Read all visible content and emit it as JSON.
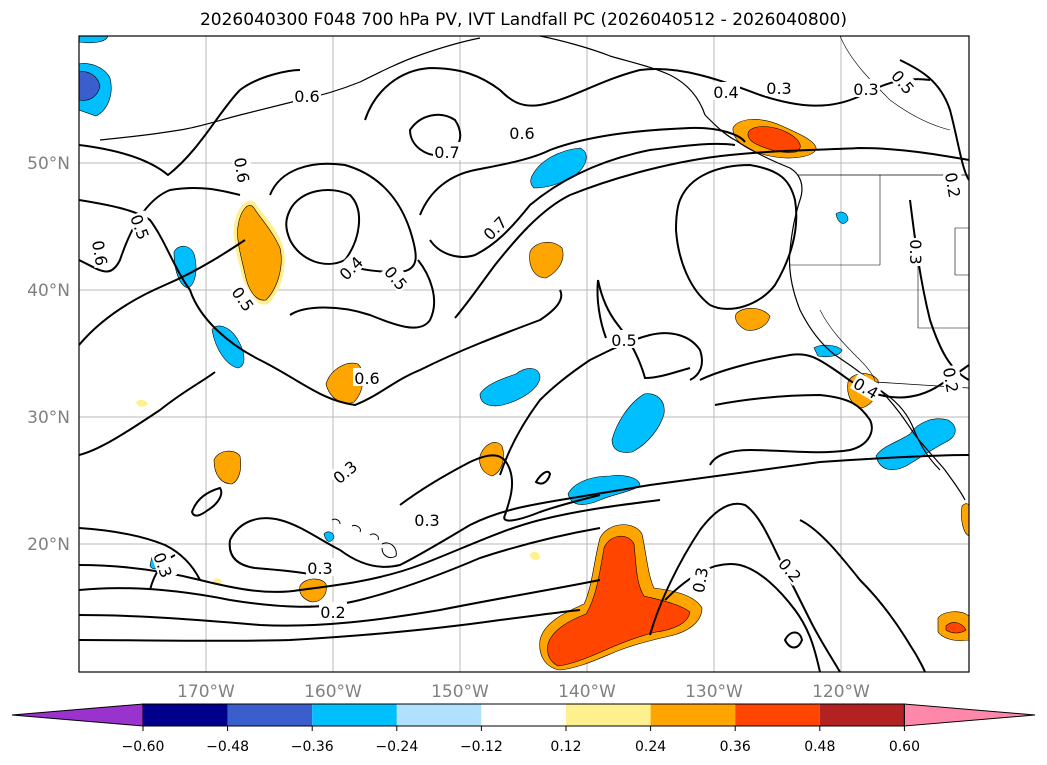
{
  "title": "2026040300 F048 700 hPa PV, IVT Landfall PC (2026040512 - 2026040800)",
  "map": {
    "lon_labels": [
      "170°W",
      "160°W",
      "150°W",
      "140°W",
      "130°W",
      "120°W"
    ],
    "lat_labels": [
      "50°N",
      "40°N",
      "30°N",
      "20°N"
    ],
    "contour_labels": [
      "0.6",
      "0.7",
      "0.6",
      "0.4",
      "0.3",
      "0.3",
      "0.5",
      "0.6",
      "0.5",
      "0.6",
      "0.4",
      "0.5",
      "0.7",
      "0.5",
      "0.5",
      "0.6",
      "0.3",
      "0.3",
      "0.3",
      "0.2",
      "0.3",
      "0.3",
      "0.2",
      "0.3",
      "0.2",
      "0.2",
      "0.4"
    ]
  },
  "colorbar": {
    "ticks": [
      "−0.60",
      "−0.48",
      "−0.36",
      "−0.24",
      "−0.12",
      "0.12",
      "0.24",
      "0.36",
      "0.48",
      "0.60"
    ],
    "colors": [
      "#9a32cd",
      "#00008b",
      "#3a5fcd",
      "#00bfff",
      "#b0e2ff",
      "#ffffff",
      "#fff08f",
      "#ffa500",
      "#ff4500",
      "#b22222",
      "#ff88aa"
    ]
  }
}
